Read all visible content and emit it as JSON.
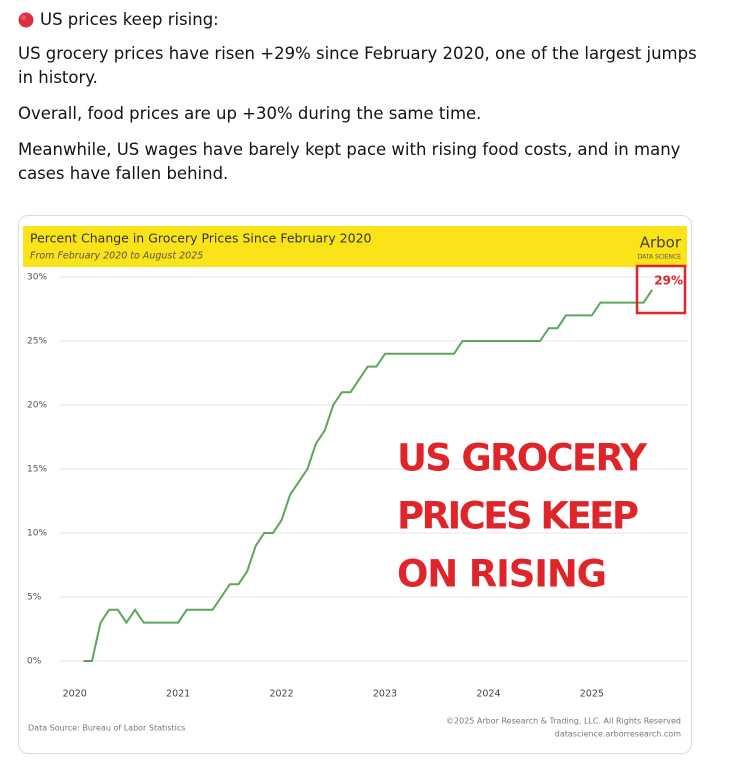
{
  "post": {
    "heading": "US prices keep rising:",
    "paragraphs": [
      "US grocery prices have risen +29% since February 2020, one of the largest jumps in history.",
      "Overall, food prices are up +30% during the same time.",
      "Meanwhile, US wages have barely kept pace with rising food costs, and in many cases have fallen behind."
    ]
  },
  "chart_data": {
    "type": "line",
    "title": "Percent Change in Grocery Prices Since February 2020",
    "subtitle": "From February 2020 to August 2025",
    "logo": "Arbor",
    "logo_tagline": "DATA SCIENCE",
    "end_label": "29%",
    "annotations": [
      "US GROCERY",
      "PRICES KEEP",
      "ON RISING"
    ],
    "source": "Data Source: Bureau of Labor Statistics",
    "copyright": "©2025 Arbor Research & Trading, LLC. All Rights Reserved",
    "url": "datascience.arborresearch.com",
    "x": [
      2020.083,
      2020.167,
      2020.25,
      2020.333,
      2020.417,
      2020.5,
      2020.583,
      2020.667,
      2020.75,
      2020.833,
      2020.917,
      2021.0,
      2021.083,
      2021.167,
      2021.25,
      2021.333,
      2021.417,
      2021.5,
      2021.583,
      2021.667,
      2021.75,
      2021.833,
      2021.917,
      2022.0,
      2022.083,
      2022.167,
      2022.25,
      2022.333,
      2022.417,
      2022.5,
      2022.583,
      2022.667,
      2022.75,
      2022.833,
      2022.917,
      2023.0,
      2023.083,
      2023.167,
      2023.25,
      2023.333,
      2023.417,
      2023.5,
      2023.583,
      2023.667,
      2023.75,
      2023.833,
      2023.917,
      2024.0,
      2024.083,
      2024.167,
      2024.25,
      2024.333,
      2024.417,
      2024.5,
      2024.583,
      2024.667,
      2024.75,
      2024.833,
      2024.917,
      2025.0,
      2025.083,
      2025.167,
      2025.25,
      2025.333,
      2025.417,
      2025.5,
      2025.583
    ],
    "series": [
      {
        "name": "Grocery prices",
        "color": "#5aa65a",
        "values": [
          0,
          0,
          3,
          4,
          4,
          3,
          4,
          3,
          3,
          3,
          3,
          3,
          4,
          4,
          4,
          4,
          5,
          6,
          6,
          7,
          9,
          10,
          10,
          11,
          13,
          14,
          15,
          17,
          18,
          20,
          21,
          21,
          22,
          23,
          23,
          24,
          24,
          24,
          24,
          24,
          24,
          24,
          24,
          24,
          25,
          25,
          25,
          25,
          25,
          25,
          25,
          25,
          25,
          25,
          26,
          26,
          27,
          27,
          27,
          27,
          28,
          28,
          28,
          28,
          28,
          28,
          29
        ]
      }
    ],
    "xlim": [
      2019.5,
      2025.92
    ],
    "ylim": [
      -0.5,
      30.5
    ],
    "xticks": [
      2020,
      2021,
      2022,
      2023,
      2024,
      2025
    ],
    "yticks": [
      {
        "value": 0,
        "label": "0%"
      },
      {
        "value": 5,
        "label": "5%"
      },
      {
        "value": 10,
        "label": "10%"
      },
      {
        "value": 15,
        "label": "15%"
      },
      {
        "value": 20,
        "label": "20%"
      },
      {
        "value": 25,
        "label": "25%"
      },
      {
        "value": 30,
        "label": "30%"
      }
    ],
    "grid": true
  }
}
